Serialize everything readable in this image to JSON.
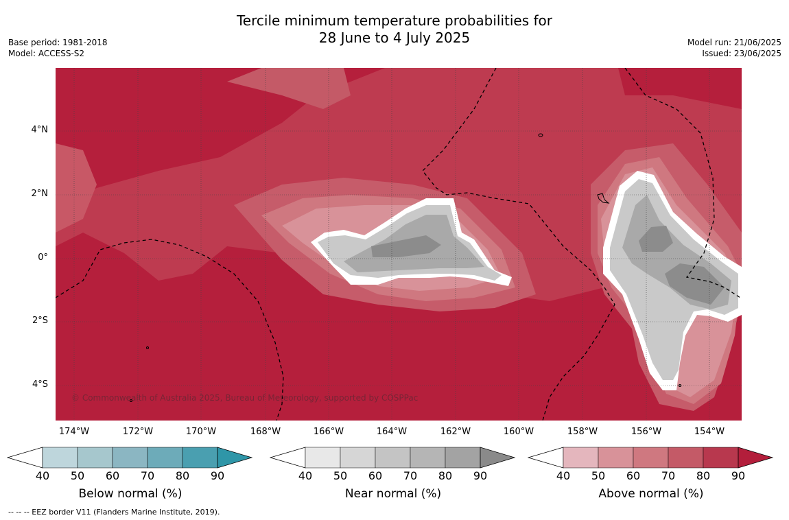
{
  "title_line1": "Tercile minimum temperature probabilities for",
  "title_line2": "28 June to 4 July 2025",
  "base_period": "Base period: 1981-2018",
  "model": "Model: ACCESS-S2",
  "model_run": "Model run: 21/06/2025",
  "issued": "Issued: 23/06/2025",
  "copyright": "© Commonwealth of Australia 2025, Bureau of Meteorology, supported by COSPPac",
  "footnote": "--  --  -- EEZ border V11 (Flanders Marine Institute, 2019).",
  "lat_labels": [
    "4°N",
    "2°N",
    "0°",
    "2°S",
    "4°S"
  ],
  "lon_labels": [
    "174°W",
    "172°W",
    "170°W",
    "168°W",
    "166°W",
    "164°W",
    "162°W",
    "160°W",
    "158°W",
    "156°W",
    "154°W"
  ],
  "legend": {
    "ticks": [
      "40",
      "50",
      "60",
      "70",
      "80",
      "90"
    ],
    "below": {
      "label": "Below normal (%)",
      "colors": [
        "#bed6dc",
        "#a6c7cd",
        "#8bb6c2",
        "#6dabb9",
        "#4a9fb0",
        "#2f96a8"
      ]
    },
    "near": {
      "label": "Near normal (%)",
      "colors": [
        "#e8e8e8",
        "#d6d6d6",
        "#c4c4c4",
        "#b5b5b5",
        "#a3a3a3",
        "#8a8a8a"
      ]
    },
    "above": {
      "label": "Above normal (%)",
      "colors": [
        "#e4b6bd",
        "#d89299",
        "#cf7880",
        "#c45a67",
        "#b8384e",
        "#b31e3b"
      ]
    }
  }
}
